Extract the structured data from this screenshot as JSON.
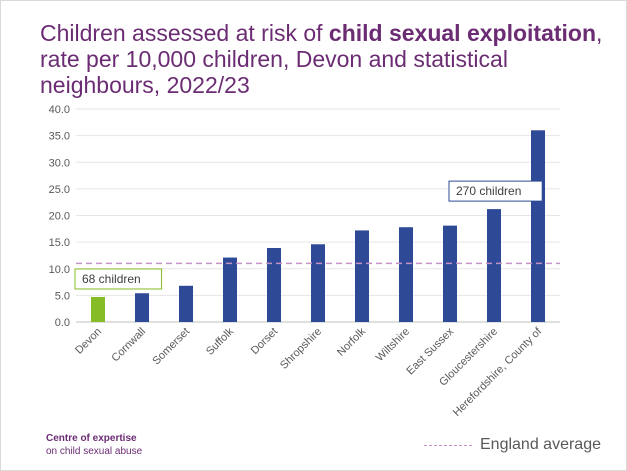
{
  "title": {
    "pre": "Children assessed  at risk of ",
    "bold": "child sexual exploitation",
    "post": ", rate per 10,000 children, Devon and statistical neighbours, 2022/23"
  },
  "chart_data": {
    "type": "bar",
    "categories": [
      "Devon",
      "Cornwall",
      "Somerset",
      "Suffolk",
      "Dorset",
      "Shropshire",
      "Norfolk",
      "Wiltshire",
      "East Sussex",
      "Gloucestershire",
      "Herefordshire, County of"
    ],
    "values": [
      4.7,
      5.4,
      6.8,
      12.1,
      13.9,
      14.6,
      17.2,
      17.8,
      18.1,
      21.2,
      36.0
    ],
    "ylim": [
      0,
      40
    ],
    "yticks": [
      "0.0",
      "5.0",
      "10.0",
      "15.0",
      "20.0",
      "25.0",
      "30.0",
      "35.0",
      "40.0"
    ],
    "grid": true,
    "reference_line": {
      "label": "England average",
      "value": 11.0,
      "color": "#c592c6"
    },
    "colors": {
      "default": "#2e4a96",
      "highlight": "#86bc25",
      "highlight_index": 0
    },
    "annotations": [
      {
        "text": "68 children",
        "category": "Devon",
        "border": "#86bc25"
      },
      {
        "text": "270 children",
        "category": "Gloucestershire",
        "border": "#2e4a96"
      }
    ]
  },
  "footer": {
    "line1": "Centre of expertise",
    "line2": "on child sexual abuse"
  },
  "legend": {
    "label": "England average"
  }
}
